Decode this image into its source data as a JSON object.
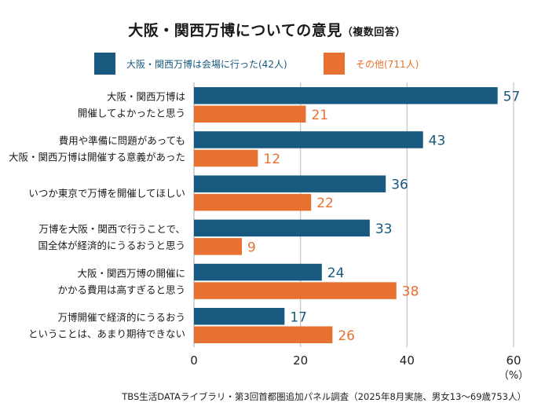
{
  "chart_data": {
    "type": "bar",
    "orientation": "horizontal",
    "title": "大阪・関西万博についての意見",
    "subtitle": "（複数回答）",
    "xlabel": "",
    "unit_label": "（%）",
    "xlim": [
      0,
      60
    ],
    "xticks": [
      0,
      20,
      40,
      60
    ],
    "grid": true,
    "legend_position": "top",
    "categories": [
      [
        "大阪・関西万博は",
        "開催してよかったと思う"
      ],
      [
        "費用や準備に問題があっても",
        "大阪・関西万博は開催する意義があった"
      ],
      [
        "いつか東京で万博を開催してほしい"
      ],
      [
        "万博を大阪・関西で行うことで、",
        "国全体が経済的にうるおうと思う"
      ],
      [
        "大阪・関西万博の開催に",
        "かかる費用は高すぎると思う"
      ],
      [
        "万博開催で経済的にうるおう",
        "ということは、あまり期待できない"
      ]
    ],
    "series": [
      {
        "name": "大阪・関西万博は会場に行った(42人)",
        "color": "#17597f",
        "values": [
          57,
          43,
          36,
          33,
          24,
          17
        ]
      },
      {
        "name": "その他(711人)",
        "color": "#e87132",
        "values": [
          21,
          12,
          22,
          9,
          38,
          26
        ]
      }
    ],
    "source": "TBS生活DATAライブラリ・第3回首都圏追加パネル調査（2025年8月実施、男女13〜69歳753人）"
  }
}
